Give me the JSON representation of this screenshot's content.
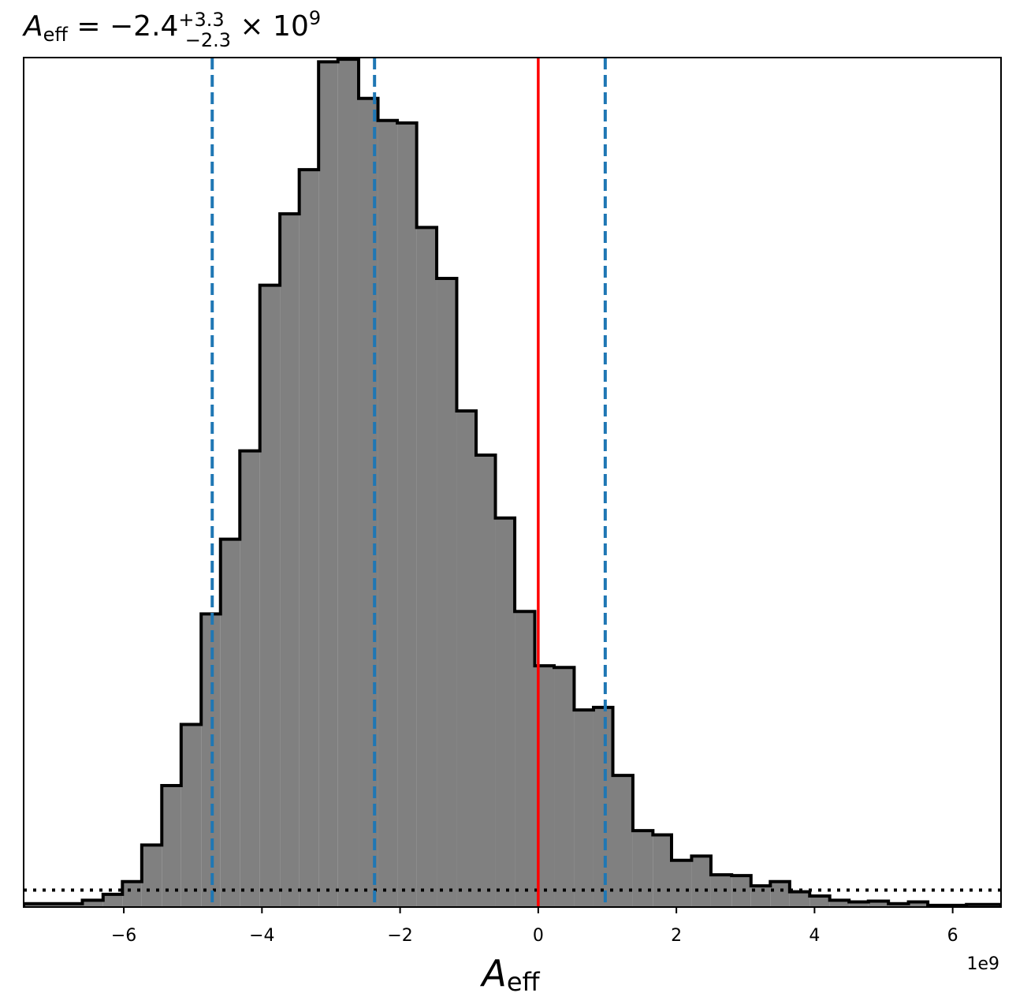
{
  "chart_data": {
    "type": "histogram",
    "title": {
      "symbol": "A",
      "symbol_sub": "eff",
      "middle": " = −2.4",
      "sup": "+3.3",
      "sub": "−2.3",
      "tail": " × 10",
      "tail_sup": "9"
    },
    "xlabel": {
      "symbol": "A",
      "sub": "eff"
    },
    "offset_text": "1e9",
    "x_scale": 1000000000.0,
    "xlim": [
      -7.45,
      6.7
    ],
    "ylim": [
      0,
      1.0
    ],
    "x_ticks": [
      {
        "value": -6,
        "label": "−6"
      },
      {
        "value": -4,
        "label": "−4"
      },
      {
        "value": -2,
        "label": "−2"
      },
      {
        "value": 0,
        "label": "0"
      },
      {
        "value": 2,
        "label": "2"
      },
      {
        "value": 4,
        "label": "4"
      },
      {
        "value": 6,
        "label": "6"
      }
    ],
    "bin_edges": [
      -7.45,
      -6.6,
      -6.3,
      -6.02,
      -5.74,
      -5.45,
      -5.17,
      -4.88,
      -4.6,
      -4.32,
      -4.03,
      -3.74,
      -3.46,
      -3.18,
      -2.9,
      -2.6,
      -2.32,
      -2.04,
      -1.76,
      -1.47,
      -1.18,
      -0.9,
      -0.62,
      -0.34,
      -0.05,
      0.23,
      0.52,
      0.8,
      1.08,
      1.37,
      1.66,
      1.93,
      2.22,
      2.5,
      2.8,
      3.08,
      3.36,
      3.64,
      3.93,
      4.22,
      4.5,
      4.78,
      5.07,
      5.36,
      5.64,
      5.92,
      6.2,
      6.7
    ],
    "bin_values": [
      0.004,
      0.008,
      0.015,
      0.03,
      0.073,
      0.143,
      0.215,
      0.345,
      0.433,
      0.537,
      0.732,
      0.816,
      0.868,
      0.995,
      0.998,
      0.952,
      0.926,
      0.923,
      0.8,
      0.74,
      0.584,
      0.532,
      0.458,
      0.348,
      0.284,
      0.282,
      0.232,
      0.235,
      0.155,
      0.09,
      0.085,
      0.055,
      0.06,
      0.038,
      0.037,
      0.025,
      0.03,
      0.018,
      0.013,
      0.008,
      0.006,
      0.007,
      0.004,
      0.006,
      0.002,
      0.002,
      0.003
    ],
    "fill_color": "#808080",
    "edge_color": "#000000",
    "quantile_lines": [
      {
        "x": -4.72,
        "label": "16th percentile"
      },
      {
        "x": -2.37,
        "label": "median"
      },
      {
        "x": 0.97,
        "label": "84th percentile"
      }
    ],
    "quantile_color": "#1f77b4",
    "truth_line": {
      "x": 0.0,
      "color": "#ff0000"
    },
    "prior_level": 0.02,
    "prior_color": "#000000"
  }
}
